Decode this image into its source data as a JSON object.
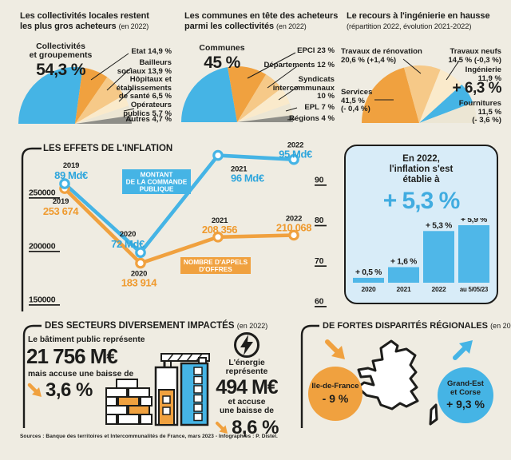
{
  "colors": {
    "bg": "#EFECE2",
    "ink": "#1D1D1B",
    "blue": "#45B4E5",
    "blue_text": "#2FA6DC",
    "orange": "#F0A13F",
    "orange_text": "#EF9A2E",
    "light_orange": "#F6C988",
    "cream": "#FAEACB",
    "pale": "#ECE6D4",
    "gray": "#8E8E88",
    "panel_blue": "#D8ECF8",
    "bar_blue": "#4FB7E8",
    "headline_blue": "#41ACE0"
  },
  "panels": [
    {
      "title_l1": "Les collectivités locales restent",
      "title_l2": "les plus gros acheteurs",
      "suffix": "(en 2022)"
    },
    {
      "title_l1": "Les communes en tête des acheteurs",
      "title_l2": "parmi les collectivités",
      "suffix": "(en 2022)"
    },
    {
      "title_l1": "Le recours à l'ingénierie en hausse",
      "title_l2": "(répartition 2022, évolution 2021-2022)",
      "suffix": ""
    }
  ],
  "sections": {
    "effects_title": "LES EFFETS DE L'INFLATION",
    "sectors_title": "DES SECTEURS DIVERSEMENT IMPACTÉS",
    "sectors_suffix": "(en 2022)",
    "regions_title": "DE FORTES DISPARITÉS RÉGIONALES",
    "regions_suffix": "(en 2022)"
  },
  "chart_data": [
    {
      "type": "pie",
      "title": "Les collectivités locales restent les plus gros acheteurs (en 2022)",
      "slices": [
        {
          "name": "Collectivités et groupements",
          "pct": 54.3,
          "color": "blue",
          "big": {
            "lines": [
              "Collectivités",
              "et groupements"
            ],
            "value": "54,3 %"
          }
        },
        {
          "name": "Etat",
          "pct": 14.9,
          "color": "orange",
          "label_lines": [
            "Etat 14,9 %"
          ]
        },
        {
          "name": "Bailleurs sociaux",
          "pct": 13.9,
          "color": "light_orange",
          "label_lines": [
            "Bailleurs",
            "sociaux 13,9 %"
          ]
        },
        {
          "name": "Hôpitaux et établissements de santé",
          "pct": 6.5,
          "color": "cream",
          "label_lines": [
            "Hôpitaux et",
            "établissements",
            "de santé 6,5 %"
          ]
        },
        {
          "name": "Opérateurs publics",
          "pct": 5.7,
          "color": "pale",
          "label_lines": [
            "Opérateurs",
            "publics 5,7 %"
          ]
        },
        {
          "name": "Autres",
          "pct": 4.7,
          "color": "gray",
          "label_lines": [
            "Autres 4,7 %"
          ]
        }
      ]
    },
    {
      "type": "pie",
      "title": "Les communes en tête des acheteurs parmi les collectivités (en 2022)",
      "slices": [
        {
          "name": "Communes",
          "pct": 45,
          "color": "blue",
          "big": {
            "lines": [
              "Communes"
            ],
            "value": "45 %"
          }
        },
        {
          "name": "EPCI",
          "pct": 23,
          "color": "orange",
          "label_lines": [
            "EPCI 23 %"
          ]
        },
        {
          "name": "Départements",
          "pct": 12,
          "color": "light_orange",
          "label_lines": [
            "Départements 12 %"
          ]
        },
        {
          "name": "Syndicats intercommunaux",
          "pct": 10,
          "color": "cream",
          "label_lines": [
            "Syndicats",
            "intercommunaux",
            "10 %"
          ]
        },
        {
          "name": "EPL",
          "pct": 7,
          "color": "pale",
          "label_lines": [
            "EPL 7 %"
          ]
        },
        {
          "name": "Régions",
          "pct": 4,
          "color": "gray",
          "label_lines": [
            "Régions 4 %"
          ]
        }
      ]
    },
    {
      "type": "pie",
      "title": "Le recours à l'ingénierie en hausse (répartition 2022, évolution 2021-2022)",
      "slices": [
        {
          "name": "Services",
          "pct": 41.5,
          "color": "orange",
          "label_lines": [
            "Services",
            "41,5 %",
            "(- 0,4 %)"
          ]
        },
        {
          "name": "Travaux de rénovation",
          "pct": 20.6,
          "color": "light_orange",
          "label_lines": [
            "Travaux de rénovation",
            "20,6 % (+1,4 %)"
          ]
        },
        {
          "name": "Travaux neufs",
          "pct": 14.5,
          "color": "cream",
          "label_lines": [
            "Travaux neufs",
            "14,5 % (-0,3 %)"
          ]
        },
        {
          "name": "Ingénierie",
          "pct": 11.9,
          "color": "blue",
          "label_lines": [
            "Ingénierie",
            "11,9 %"
          ],
          "highlight": "+ 6,3 %"
        },
        {
          "name": "Fournitures",
          "pct": 11.5,
          "color": "pale",
          "label_lines": [
            "Fournitures",
            "11,5 %",
            "(- 3,6 %)"
          ]
        }
      ]
    },
    {
      "type": "line",
      "title": "LES EFFETS DE L'INFLATION",
      "x": [
        "2019",
        "2020",
        "2021",
        "2022"
      ],
      "series": [
        {
          "name": "MONTANT DE LA COMMANDE PUBLIQUE",
          "axis": "right",
          "unit": "Md€",
          "values": [
            89,
            72,
            96,
            95
          ],
          "labels": [
            "89 Md€",
            "72 Md€",
            "96 Md€",
            "95 Md€"
          ],
          "color": "blue",
          "box_lines": [
            "MONTANT",
            "DE LA COMMANDE",
            "PUBLIQUE"
          ]
        },
        {
          "name": "NOMBRE D'APPELS D'OFFRES",
          "axis": "left",
          "values": [
            253674,
            183914,
            208356,
            210068
          ],
          "labels": [
            "253 674",
            "183 914",
            "208 356",
            "210 068"
          ],
          "color": "orange",
          "box_lines": [
            "NOMBRE D'APPELS",
            "D'OFFRES"
          ]
        }
      ],
      "left_axis": {
        "ticks": [
          250000,
          200000,
          150000
        ],
        "labels": [
          "250000",
          "200000",
          "150000"
        ],
        "range": [
          150000,
          260000
        ]
      },
      "right_axis": {
        "ticks": [
          90,
          80,
          70,
          60
        ],
        "labels": [
          "90",
          "80",
          "70",
          "60"
        ],
        "range": [
          60,
          95
        ]
      }
    },
    {
      "type": "bar",
      "title": "En 2022, l'inflation s'est établie à + 5,3 %",
      "categories": [
        "2020",
        "2021",
        "2022",
        "au 5/05/23"
      ],
      "values": [
        0.5,
        1.6,
        5.3,
        5.9
      ],
      "labels": [
        "+ 0,5 %",
        "+ 1,6 %",
        "+ 5,3 %",
        "+ 5,9 %"
      ],
      "ylim": [
        0,
        6.5
      ]
    }
  ],
  "inflation_box": {
    "line1": "En 2022,",
    "line2": "l'inflation s'est",
    "line3": "établie à",
    "headline": "+ 5,3 %"
  },
  "sectors": {
    "building": {
      "intro": "Le bâtiment public représente",
      "amount": "21 756 M€",
      "note": "mais accuse une baisse de",
      "pct": "3,6 %"
    },
    "energy": {
      "intro1": "L'énergie",
      "intro2": "représente",
      "amount": "494 M€",
      "note1": "et accuse",
      "note2": "une baisse de",
      "pct": "8,6 %"
    }
  },
  "regions": {
    "idf": {
      "name": "Ile-de-France",
      "pct": "- 9 %"
    },
    "grand_est": {
      "name_l1": "Grand-Est",
      "name_l2": "et Corse",
      "pct": "+ 9,3 %"
    }
  },
  "icons": {
    "energy": "lightning-icon",
    "decrease": "arrow-down-right-icon",
    "increase": "arrow-up-right-icon"
  },
  "source": "Sources : Banque des territoires et Intercommunalités de France, mars 2023 - Infographies : P. Distel."
}
